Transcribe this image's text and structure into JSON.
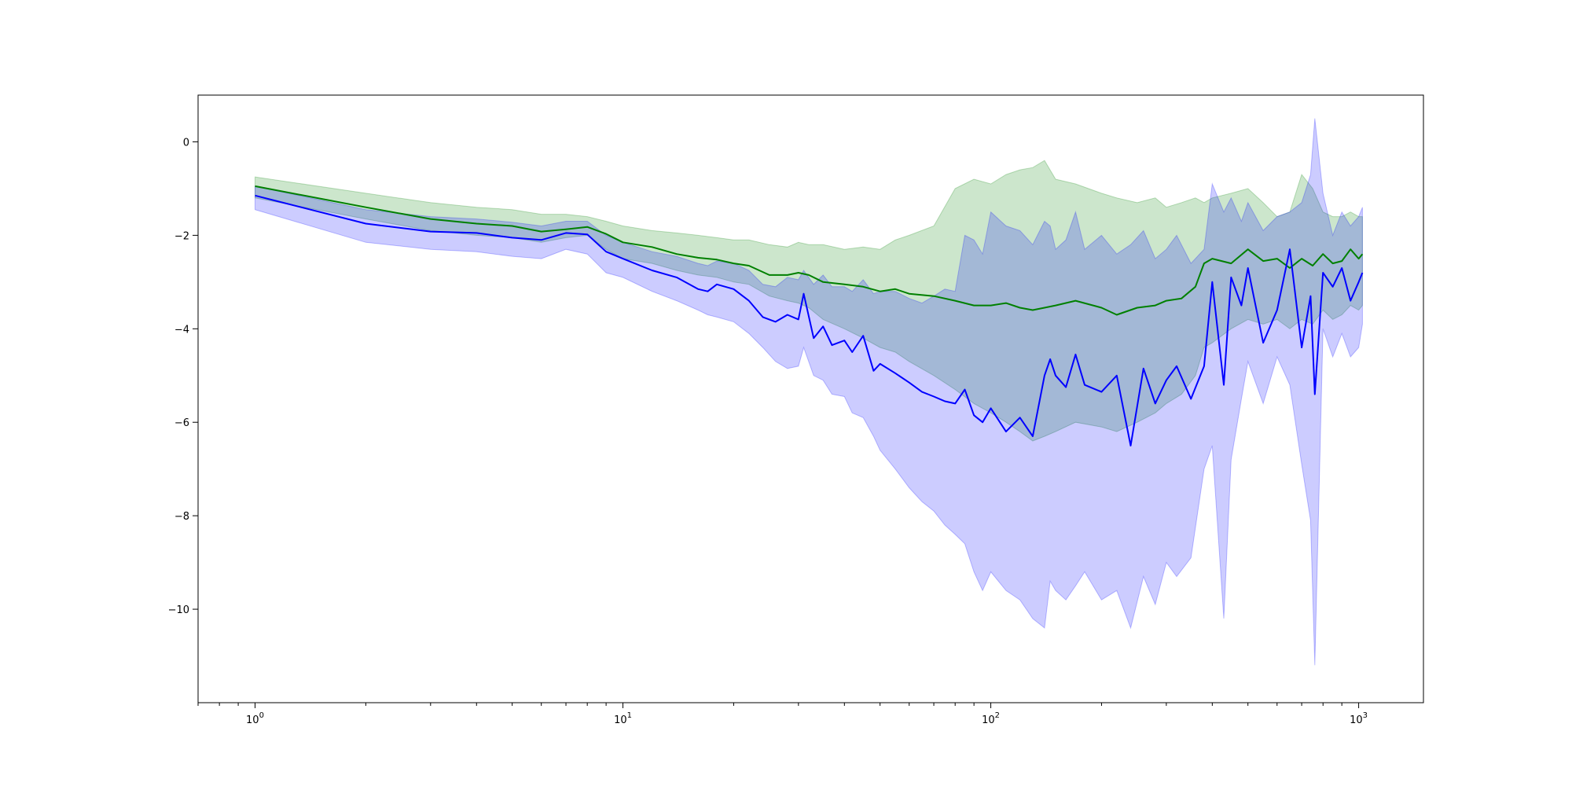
{
  "chart_data": {
    "type": "line",
    "title": "",
    "xlabel": "",
    "ylabel": "",
    "x_scale": "log",
    "xlim": [
      0.7,
      1500
    ],
    "ylim": [
      -12,
      1
    ],
    "grid": false,
    "x_ticks": [
      {
        "value": 1,
        "base": "10",
        "exp": "0"
      },
      {
        "value": 10,
        "base": "10",
        "exp": "1"
      },
      {
        "value": 100,
        "base": "10",
        "exp": "2"
      },
      {
        "value": 1000,
        "base": "10",
        "exp": "3"
      }
    ],
    "y_ticks": [
      {
        "value": 0,
        "label": "0"
      },
      {
        "value": -2,
        "label": "−2"
      },
      {
        "value": -4,
        "label": "−4"
      },
      {
        "value": -6,
        "label": "−6"
      },
      {
        "value": -8,
        "label": "−8"
      },
      {
        "value": -10,
        "label": "−10"
      }
    ],
    "series": [
      {
        "color": "#008000",
        "band_color": "#008000",
        "band_opacity": 0.2,
        "x": [
          1,
          2,
          3,
          4,
          5,
          6,
          7,
          8,
          9,
          10,
          12,
          14,
          16,
          18,
          20,
          22,
          25,
          28,
          30,
          32,
          35,
          40,
          45,
          50,
          55,
          60,
          70,
          80,
          90,
          100,
          110,
          120,
          130,
          140,
          150,
          170,
          200,
          220,
          250,
          280,
          300,
          330,
          360,
          380,
          400,
          450,
          500,
          550,
          600,
          650,
          700,
          750,
          800,
          850,
          900,
          950,
          1000,
          1024
        ],
        "y": [
          -0.95,
          -1.4,
          -1.65,
          -1.75,
          -1.8,
          -1.92,
          -1.87,
          -1.82,
          -1.97,
          -2.15,
          -2.25,
          -2.4,
          -2.48,
          -2.52,
          -2.6,
          -2.65,
          -2.85,
          -2.85,
          -2.8,
          -2.85,
          -3.0,
          -3.05,
          -3.1,
          -3.2,
          -3.15,
          -3.25,
          -3.3,
          -3.4,
          -3.5,
          -3.5,
          -3.45,
          -3.55,
          -3.6,
          -3.55,
          -3.5,
          -3.4,
          -3.55,
          -3.7,
          -3.55,
          -3.5,
          -3.4,
          -3.35,
          -3.1,
          -2.6,
          -2.5,
          -2.6,
          -2.3,
          -2.55,
          -2.5,
          -2.7,
          -2.5,
          -2.65,
          -2.4,
          -2.6,
          -2.55,
          -2.3,
          -2.5,
          -2.4
        ],
        "lower": [
          -1.2,
          -1.65,
          -1.9,
          -2.0,
          -2.05,
          -2.15,
          -2.05,
          -2.0,
          -2.3,
          -2.5,
          -2.6,
          -2.75,
          -2.85,
          -2.9,
          -3.0,
          -3.05,
          -3.3,
          -3.4,
          -3.45,
          -3.55,
          -3.8,
          -4.0,
          -4.2,
          -4.4,
          -4.5,
          -4.7,
          -5.0,
          -5.3,
          -5.6,
          -5.8,
          -6.0,
          -6.2,
          -6.4,
          -6.3,
          -6.2,
          -6.0,
          -6.1,
          -6.2,
          -6.0,
          -5.8,
          -5.6,
          -5.4,
          -5.0,
          -4.4,
          -4.3,
          -4.0,
          -3.8,
          -3.9,
          -3.8,
          -4.0,
          -3.8,
          -3.9,
          -3.6,
          -3.8,
          -3.7,
          -3.5,
          -3.6,
          -3.5
        ],
        "upper": [
          -0.75,
          -1.1,
          -1.3,
          -1.4,
          -1.45,
          -1.55,
          -1.55,
          -1.6,
          -1.7,
          -1.8,
          -1.9,
          -1.95,
          -2.0,
          -2.05,
          -2.1,
          -2.1,
          -2.2,
          -2.25,
          -2.15,
          -2.2,
          -2.2,
          -2.3,
          -2.25,
          -2.3,
          -2.1,
          -2.0,
          -1.8,
          -1.0,
          -0.8,
          -0.9,
          -0.7,
          -0.6,
          -0.55,
          -0.4,
          -0.8,
          -0.9,
          -1.1,
          -1.2,
          -1.3,
          -1.2,
          -1.4,
          -1.3,
          -1.2,
          -1.3,
          -1.2,
          -1.1,
          -1.0,
          -1.3,
          -1.6,
          -1.5,
          -0.7,
          -1.0,
          -1.5,
          -1.6,
          -1.6,
          -1.5,
          -1.6,
          -1.6
        ]
      },
      {
        "color": "#0000ff",
        "band_color": "#0000ff",
        "band_opacity": 0.2,
        "x": [
          1,
          2,
          3,
          4,
          5,
          6,
          7,
          8,
          9,
          10,
          12,
          14,
          16,
          17,
          18,
          20,
          22,
          24,
          26,
          28,
          30,
          31,
          33,
          35,
          37,
          40,
          42,
          45,
          48,
          50,
          55,
          60,
          65,
          70,
          75,
          80,
          85,
          90,
          95,
          100,
          110,
          120,
          130,
          140,
          145,
          150,
          160,
          170,
          180,
          200,
          220,
          240,
          260,
          280,
          300,
          320,
          350,
          380,
          400,
          430,
          450,
          480,
          500,
          550,
          600,
          650,
          700,
          740,
          760,
          800,
          850,
          900,
          950,
          1000,
          1024
        ],
        "y": [
          -1.15,
          -1.75,
          -1.92,
          -1.95,
          -2.05,
          -2.1,
          -1.95,
          -1.98,
          -2.35,
          -2.5,
          -2.75,
          -2.9,
          -3.15,
          -3.2,
          -3.05,
          -3.15,
          -3.4,
          -3.75,
          -3.85,
          -3.7,
          -3.8,
          -3.25,
          -4.2,
          -3.95,
          -4.35,
          -4.25,
          -4.5,
          -4.15,
          -4.9,
          -4.75,
          -4.95,
          -5.15,
          -5.35,
          -5.45,
          -5.55,
          -5.6,
          -5.3,
          -5.85,
          -6.0,
          -5.7,
          -6.2,
          -5.9,
          -6.3,
          -5.0,
          -4.65,
          -5.0,
          -5.25,
          -4.55,
          -5.2,
          -5.35,
          -5.0,
          -6.5,
          -4.85,
          -5.6,
          -5.1,
          -4.8,
          -5.5,
          -4.8,
          -3.0,
          -5.2,
          -2.9,
          -3.5,
          -2.7,
          -4.3,
          -3.6,
          -2.3,
          -4.4,
          -3.3,
          -5.4,
          -2.8,
          -3.1,
          -2.7,
          -3.4,
          -3.0,
          -2.8
        ],
        "lower": [
          -1.45,
          -2.15,
          -2.3,
          -2.35,
          -2.45,
          -2.5,
          -2.3,
          -2.4,
          -2.8,
          -2.9,
          -3.2,
          -3.4,
          -3.6,
          -3.7,
          -3.75,
          -3.85,
          -4.1,
          -4.4,
          -4.7,
          -4.85,
          -4.8,
          -4.4,
          -5.0,
          -5.1,
          -5.4,
          -5.45,
          -5.8,
          -5.9,
          -6.3,
          -6.6,
          -7.0,
          -7.4,
          -7.7,
          -7.9,
          -8.2,
          -8.4,
          -8.6,
          -9.2,
          -9.6,
          -9.2,
          -9.6,
          -9.8,
          -10.2,
          -10.4,
          -9.4,
          -9.6,
          -9.8,
          -9.5,
          -9.2,
          -9.8,
          -9.6,
          -10.4,
          -9.3,
          -9.9,
          -9.0,
          -9.3,
          -8.9,
          -7.0,
          -6.5,
          -10.2,
          -6.8,
          -5.5,
          -4.7,
          -5.6,
          -4.6,
          -5.2,
          -6.9,
          -8.1,
          -11.2,
          -4.0,
          -4.6,
          -4.1,
          -4.6,
          -4.4,
          -3.9
        ],
        "upper": [
          -0.95,
          -1.45,
          -1.6,
          -1.65,
          -1.72,
          -1.8,
          -1.7,
          -1.7,
          -2.0,
          -2.15,
          -2.35,
          -2.45,
          -2.6,
          -2.65,
          -2.55,
          -2.6,
          -2.75,
          -3.05,
          -3.1,
          -2.9,
          -2.95,
          -2.75,
          -3.05,
          -2.85,
          -3.1,
          -3.1,
          -3.2,
          -2.95,
          -3.25,
          -3.2,
          -3.2,
          -3.35,
          -3.45,
          -3.3,
          -3.15,
          -3.2,
          -2.0,
          -2.1,
          -2.4,
          -1.5,
          -1.8,
          -1.9,
          -2.2,
          -1.7,
          -1.8,
          -2.3,
          -2.1,
          -1.5,
          -2.3,
          -2.0,
          -2.4,
          -2.2,
          -1.9,
          -2.5,
          -2.3,
          -2.0,
          -2.6,
          -2.3,
          -0.9,
          -1.5,
          -1.2,
          -1.7,
          -1.3,
          -1.9,
          -1.6,
          -1.5,
          -1.3,
          -0.7,
          0.5,
          -1.1,
          -2.0,
          -1.5,
          -1.8,
          -1.6,
          -1.4
        ]
      }
    ]
  }
}
